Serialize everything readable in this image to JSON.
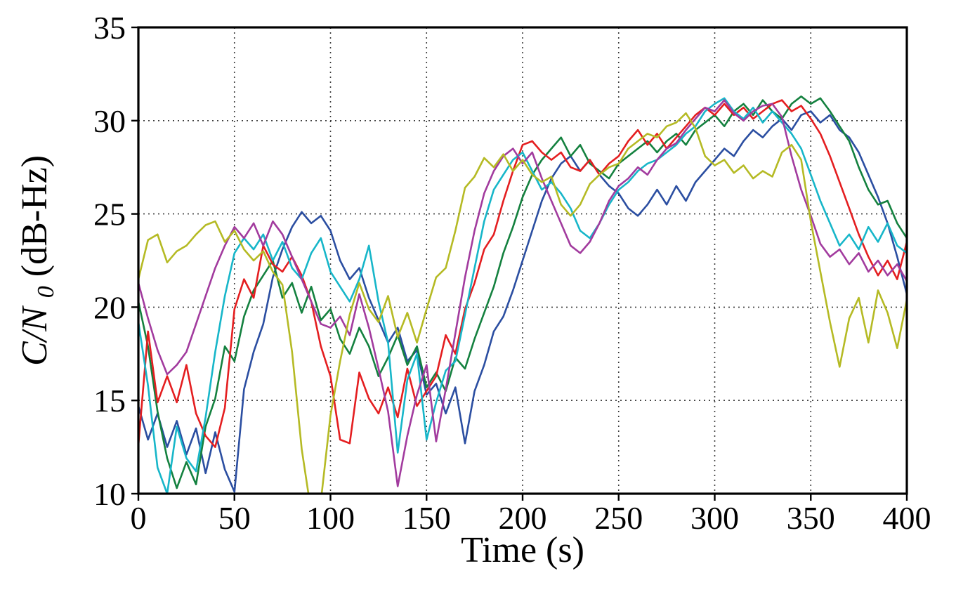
{
  "figure": {
    "background": "#ffffff",
    "frame_color": "#000000",
    "grid_color": "#3c3c3c"
  },
  "chart_data": {
    "type": "line",
    "title": "",
    "xlabel": "Time (s)",
    "ylabel": {
      "math_main": "C/N",
      "math_sub": "0",
      "units": " (dB-Hz)"
    },
    "xlim": [
      0,
      400
    ],
    "ylim": [
      10,
      35
    ],
    "x_ticks": [
      0,
      50,
      100,
      150,
      200,
      250,
      300,
      350,
      400
    ],
    "y_ticks": [
      10,
      15,
      20,
      25,
      30,
      35
    ],
    "grid": true,
    "legend": "none",
    "x_start": 0,
    "x_step": 5,
    "series": [
      {
        "name": "line-blue",
        "color": "#2b4ea1",
        "values": [
          14.7,
          12.9,
          14.3,
          12.5,
          13.9,
          12.1,
          13.5,
          11.1,
          13.3,
          11.3,
          10.1,
          15.6,
          17.6,
          19.1,
          21.6,
          23.1,
          24.3,
          25.1,
          24.5,
          24.9,
          24.1,
          22.5,
          21.5,
          22.1,
          20.5,
          19.3,
          18.1,
          18.9,
          17.1,
          17.7,
          15.3,
          15.9,
          14.3,
          15.7,
          12.7,
          15.5,
          16.9,
          18.7,
          19.5,
          20.9,
          22.5,
          24.1,
          25.7,
          26.9,
          27.7,
          28.1,
          27.3,
          27.9,
          27.1,
          26.5,
          26.1,
          25.3,
          24.9,
          25.5,
          26.3,
          25.5,
          26.5,
          25.7,
          26.7,
          27.3,
          27.9,
          28.5,
          28.1,
          28.9,
          29.5,
          29.1,
          29.7,
          30.1,
          29.5,
          30.3,
          30.5,
          29.9,
          30.3,
          29.5,
          29.1,
          28.3,
          27.1,
          25.9,
          24.5,
          22.7,
          20.7
        ]
      },
      {
        "name": "line-green",
        "color": "#14813f",
        "values": [
          20.3,
          17.9,
          14.4,
          11.9,
          10.3,
          11.7,
          10.5,
          13.6,
          15.1,
          17.9,
          17.1,
          19.5,
          20.9,
          21.7,
          22.5,
          20.5,
          21.3,
          19.7,
          21.1,
          19.3,
          19.9,
          18.3,
          17.5,
          18.9,
          17.9,
          16.3,
          17.3,
          18.5,
          16.9,
          17.9,
          15.7,
          16.5,
          15.5,
          17.3,
          16.7,
          18.3,
          19.7,
          21.1,
          22.9,
          24.3,
          25.9,
          27.1,
          27.9,
          28.5,
          29.1,
          28.1,
          28.7,
          27.7,
          27.3,
          26.9,
          27.7,
          28.1,
          28.5,
          28.9,
          28.3,
          28.9,
          29.3,
          28.7,
          29.5,
          29.9,
          30.3,
          29.7,
          30.5,
          30.9,
          30.3,
          31.1,
          30.5,
          30.1,
          30.9,
          31.3,
          30.9,
          31.2,
          30.5,
          29.7,
          28.9,
          27.5,
          26.3,
          25.5,
          25.7,
          24.5,
          23.7
        ]
      },
      {
        "name": "line-red",
        "color": "#e41e20",
        "values": [
          12.6,
          18.7,
          14.9,
          16.3,
          14.9,
          16.9,
          14.3,
          13.1,
          12.5,
          14.6,
          19.9,
          21.5,
          20.5,
          23.3,
          22.3,
          21.9,
          22.7,
          21.7,
          20.3,
          17.9,
          16.3,
          12.9,
          12.7,
          16.5,
          15.1,
          14.3,
          15.7,
          14.1,
          16.7,
          14.7,
          15.5,
          16.3,
          18.5,
          17.5,
          19.9,
          21.3,
          23.1,
          23.9,
          25.7,
          27.3,
          28.7,
          28.9,
          28.3,
          27.9,
          28.3,
          27.5,
          27.3,
          27.9,
          27.1,
          27.7,
          28.1,
          28.9,
          29.5,
          28.7,
          29.3,
          28.5,
          29.1,
          29.7,
          30.3,
          30.7,
          30.3,
          30.9,
          30.3,
          30.7,
          30.1,
          30.5,
          30.9,
          31.1,
          30.5,
          30.8,
          30.1,
          29.3,
          28.1,
          26.7,
          25.3,
          23.9,
          22.7,
          21.7,
          22.5,
          21.5,
          23.5
        ]
      },
      {
        "name": "line-cyan",
        "color": "#17b6c9",
        "values": [
          19.2,
          15.8,
          11.4,
          10.0,
          13.6,
          11.9,
          11.2,
          14.1,
          17.6,
          20.6,
          22.9,
          23.7,
          23.1,
          23.9,
          22.5,
          23.5,
          22.1,
          21.5,
          22.9,
          23.7,
          21.9,
          21.1,
          20.3,
          21.5,
          23.3,
          20.3,
          18.1,
          12.2,
          16.1,
          17.5,
          12.9,
          14.9,
          16.6,
          17.1,
          19.6,
          22.1,
          24.6,
          26.3,
          27.1,
          27.9,
          28.3,
          27.3,
          26.3,
          26.7,
          26.1,
          25.3,
          24.1,
          23.7,
          24.5,
          25.5,
          26.3,
          26.7,
          27.3,
          27.7,
          27.9,
          28.3,
          28.7,
          29.3,
          29.7,
          30.5,
          30.9,
          31.2,
          30.5,
          30.1,
          30.7,
          29.9,
          30.5,
          29.9,
          29.3,
          28.5,
          27.1,
          25.7,
          24.5,
          23.3,
          23.9,
          23.1,
          24.3,
          23.5,
          24.5,
          23.3,
          22.9
        ]
      },
      {
        "name": "line-magenta",
        "color": "#a23b9e",
        "values": [
          21.3,
          19.4,
          17.7,
          16.4,
          16.9,
          17.6,
          19.1,
          20.6,
          22.1,
          23.3,
          24.3,
          23.7,
          24.5,
          23.3,
          24.6,
          23.9,
          22.7,
          21.5,
          20.3,
          19.1,
          18.9,
          19.5,
          18.5,
          20.7,
          18.9,
          16.7,
          14.4,
          10.4,
          13.1,
          15.3,
          16.9,
          12.8,
          15.6,
          18.6,
          21.6,
          24.1,
          26.1,
          27.3,
          28.1,
          28.5,
          27.7,
          28.3,
          26.9,
          25.7,
          24.5,
          23.3,
          22.9,
          23.5,
          24.5,
          25.7,
          26.5,
          26.9,
          27.5,
          27.1,
          27.9,
          28.5,
          28.8,
          29.5,
          30.1,
          30.7,
          30.5,
          31.1,
          30.4,
          30.0,
          30.5,
          30.8,
          30.9,
          30.2,
          28.1,
          26.3,
          24.9,
          23.4,
          22.7,
          23.1,
          22.3,
          22.9,
          21.9,
          22.5,
          21.7,
          22.3,
          21.4
        ]
      },
      {
        "name": "line-olive",
        "color": "#b5ba24",
        "values": [
          21.5,
          23.6,
          23.9,
          22.4,
          23.0,
          23.3,
          23.9,
          24.4,
          24.6,
          23.5,
          24.1,
          23.1,
          22.5,
          23.0,
          21.9,
          21.2,
          17.6,
          12.4,
          9.0,
          9.6,
          14.2,
          17.1,
          19.6,
          21.3,
          19.9,
          19.2,
          20.6,
          18.4,
          19.7,
          18.1,
          19.9,
          21.6,
          22.1,
          24.1,
          26.4,
          27.0,
          28.0,
          27.5,
          28.2,
          27.3,
          27.9,
          27.1,
          26.7,
          27.0,
          25.5,
          24.9,
          25.5,
          26.6,
          27.1,
          27.5,
          27.7,
          28.5,
          28.9,
          29.3,
          29.1,
          29.7,
          29.9,
          30.4,
          29.6,
          28.1,
          27.6,
          27.9,
          27.2,
          27.6,
          26.9,
          27.3,
          27.0,
          28.3,
          28.7,
          27.9,
          24.6,
          21.9,
          19.2,
          16.8,
          19.4,
          20.5,
          18.1,
          20.9,
          19.7,
          17.8,
          20.4
        ]
      }
    ]
  }
}
